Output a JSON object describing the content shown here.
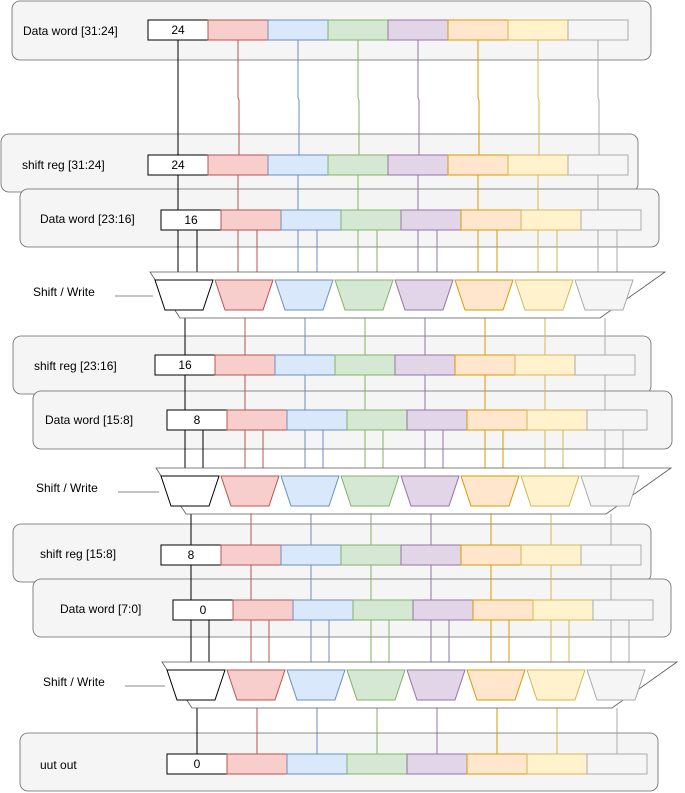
{
  "colors": {
    "cells": [
      {
        "fill": "#ffffff",
        "stroke": "#000000"
      },
      {
        "fill": "#f8cecc",
        "stroke": "#b85450"
      },
      {
        "fill": "#dae8fc",
        "stroke": "#6c8ebf"
      },
      {
        "fill": "#d5e8d4",
        "stroke": "#82b366"
      },
      {
        "fill": "#e1d5e7",
        "stroke": "#9673a6"
      },
      {
        "fill": "#ffe6cc",
        "stroke": "#d79b00"
      },
      {
        "fill": "#fff2cc",
        "stroke": "#d6b656"
      },
      {
        "fill": "#f5f5f5",
        "stroke": "#aaaaaa"
      }
    ],
    "panel_fill": "#f5f5f5",
    "panel_stroke": "#666666"
  },
  "rows": [
    {
      "label": "Data word [31:24]",
      "value": "24"
    },
    {
      "label": "shift reg [31:24]",
      "value": "24"
    },
    {
      "label": "Data word [23:16]",
      "value": "16"
    },
    {
      "label": "shift reg [23:16]",
      "value": "16"
    },
    {
      "label": "Data word [15:8]",
      "value": "8"
    },
    {
      "label": "shift reg [15:8]",
      "value": "8"
    },
    {
      "label": "Data word [7:0]",
      "value": "0"
    },
    {
      "label": "uut out",
      "value": "0"
    }
  ],
  "mux_stages": [
    {
      "label": "Shift / Write"
    },
    {
      "label": "Shift / Write"
    },
    {
      "label": "Shift / Write"
    }
  ]
}
